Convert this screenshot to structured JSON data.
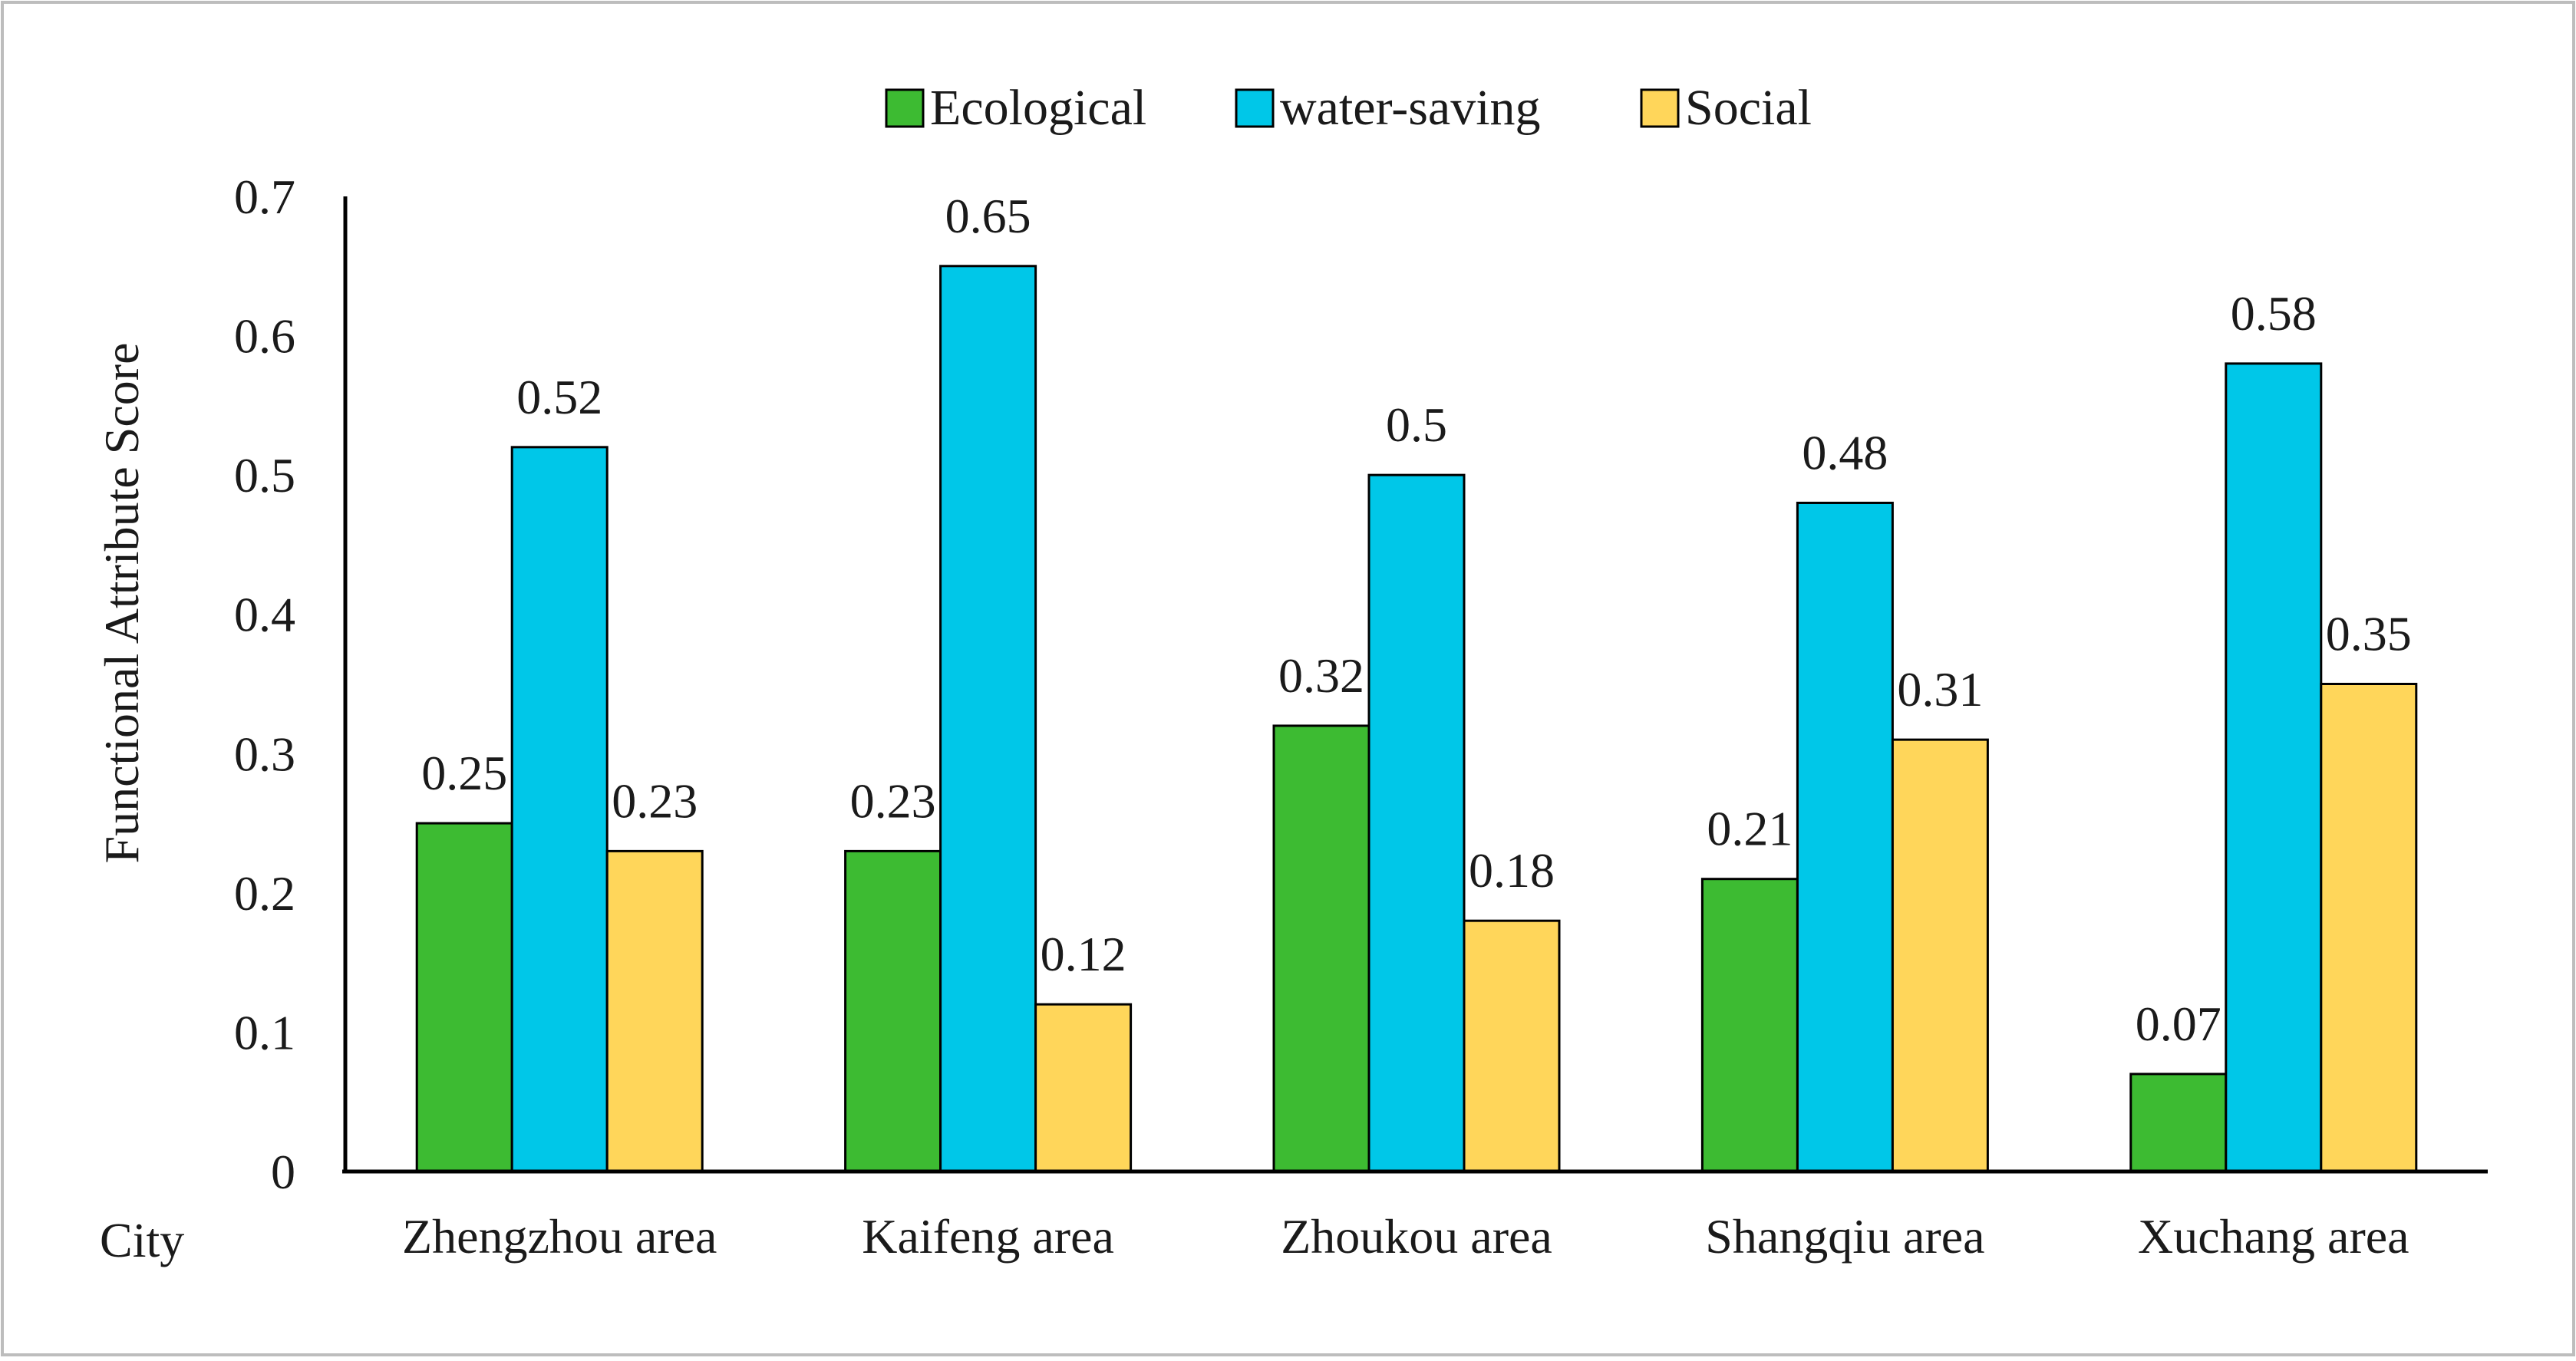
{
  "chart_data": {
    "type": "bar",
    "title": "",
    "xlabel": "City",
    "ylabel": "Functional  Attribute Score",
    "categories": [
      "Zhengzhou area",
      "Kaifeng area",
      "Zhoukou area",
      "Shangqiu area",
      "Xuchang area"
    ],
    "series": [
      {
        "name": "Ecological",
        "color": "#3dbb32",
        "values": [
          0.25,
          0.23,
          0.32,
          0.21,
          0.07
        ]
      },
      {
        "name": "water-saving",
        "color": "#00c7e8",
        "values": [
          0.52,
          0.65,
          0.5,
          0.48,
          0.58
        ]
      },
      {
        "name": "Social",
        "color": "#ffd65a",
        "values": [
          0.23,
          0.12,
          0.18,
          0.31,
          0.35
        ]
      }
    ],
    "ylim": [
      0,
      0.7
    ],
    "yticks": [
      "0",
      "0.1",
      "0.2",
      "0.3",
      "0.4",
      "0.5",
      "0.6",
      "0.7"
    ],
    "grid": false,
    "legend_position": "top-center",
    "frame_color": "#bdbdbd"
  }
}
